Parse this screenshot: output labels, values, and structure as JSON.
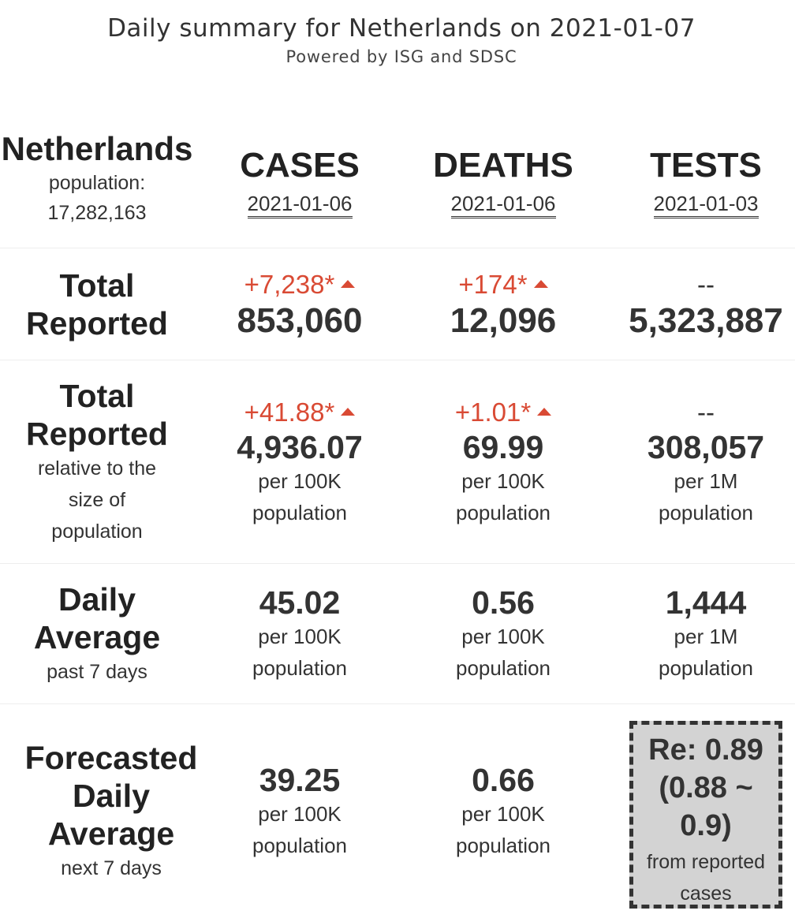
{
  "header": {
    "title": "Daily summary for Netherlands on 2021-01-07",
    "subtitle": "Powered by ISG and SDSC"
  },
  "country": {
    "name": "Netherlands",
    "population_label": "population:",
    "population": "17,282,163"
  },
  "columns": [
    {
      "label": "CASES",
      "date": "2021-01-06"
    },
    {
      "label": "DEATHS",
      "date": "2021-01-06"
    },
    {
      "label": "TESTS",
      "date": "2021-01-03"
    }
  ],
  "rows": {
    "total_reported": {
      "label_line1": "Total",
      "label_line2": "Reported",
      "cases": {
        "delta": "+7,238*",
        "value": "853,060"
      },
      "deaths": {
        "delta": "+174*",
        "value": "12,096"
      },
      "tests": {
        "delta": "--",
        "value": "5,323,887"
      }
    },
    "relative": {
      "label_line1": "Total",
      "label_line2": "Reported",
      "sub_line1": "relative to the",
      "sub_line2": "size of",
      "sub_line3": "population",
      "cases": {
        "delta": "+41.88*",
        "value": "4,936.07",
        "unit1": "per 100K",
        "unit2": "population"
      },
      "deaths": {
        "delta": "+1.01*",
        "value": "69.99",
        "unit1": "per 100K",
        "unit2": "population"
      },
      "tests": {
        "delta": "--",
        "value": "308,057",
        "unit1": "per 1M",
        "unit2": "population"
      }
    },
    "daily_average": {
      "label_line1": "Daily",
      "label_line2": "Average",
      "sub": "past 7 days",
      "cases": {
        "value": "45.02",
        "unit1": "per 100K",
        "unit2": "population"
      },
      "deaths": {
        "value": "0.56",
        "unit1": "per 100K",
        "unit2": "population"
      },
      "tests": {
        "value": "1,444",
        "unit1": "per 1M",
        "unit2": "population"
      }
    },
    "forecast": {
      "label_line1": "Forecasted",
      "label_line2": "Daily",
      "label_line3": "Average",
      "sub": "next 7 days",
      "cases": {
        "value": "39.25",
        "unit1": "per 100K",
        "unit2": "population"
      },
      "deaths": {
        "value": "0.66",
        "unit1": "per 100K",
        "unit2": "population"
      },
      "re": {
        "line1": "Re: 0.89",
        "line2": "(0.88 ~",
        "line3": "0.9)",
        "sub1": "from reported",
        "sub2": "cases"
      }
    }
  },
  "colors": {
    "increase": "#d94a34",
    "text": "#333333",
    "re_box_bg": "#d3d3d3",
    "divider": "#eeeeee"
  },
  "icons": {
    "increase": "triangle-up-icon"
  }
}
